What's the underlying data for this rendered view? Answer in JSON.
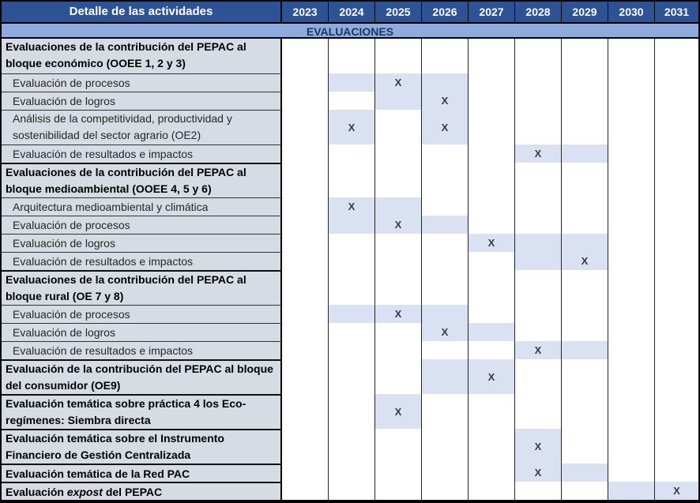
{
  "header": {
    "title": "Detalle de las actividades",
    "years": [
      "2023",
      "2024",
      "2025",
      "2026",
      "2027",
      "2028",
      "2029",
      "2030",
      "2031"
    ]
  },
  "band": {
    "label": "EVALUACIONES"
  },
  "mark_symbol": "X",
  "colors": {
    "header_bg": "#2E5395",
    "header_text": "#FFFFFF",
    "band_bg": "#8FAADC",
    "band_text": "#17375E",
    "label_bg": "#D6DCE4",
    "cell_highlight": "#DAE1F3",
    "mark_color": "#3A3A3A"
  },
  "rows": [
    {
      "kind": "section",
      "label": "Evaluaciones de la contribución del PEPAC al bloque económico (OOEE 1, 2 y 3)",
      "marks": {}
    },
    {
      "kind": "item",
      "label": "Evaluación de procesos",
      "marks": {
        "2024": "s",
        "2025": "x",
        "2026": "s"
      }
    },
    {
      "kind": "item",
      "label": "Evaluación de logros",
      "marks": {
        "2025": "s",
        "2026": "x"
      }
    },
    {
      "kind": "item-tall",
      "label": "Análisis de la competitividad, productividad y sostenibilidad del sector agrario (OE2)",
      "marks": {
        "2024": "x",
        "2026": "x"
      }
    },
    {
      "kind": "item",
      "label": "Evaluación de resultados e impactos",
      "marks": {
        "2028": "x",
        "2029": "s"
      }
    },
    {
      "kind": "section",
      "label": "Evaluaciones de la contribución del PEPAC al bloque medioambiental (OOEE 4, 5 y 6)",
      "marks": {}
    },
    {
      "kind": "item",
      "label": "Arquitectura medioambiental y climática",
      "marks": {
        "2024": "x",
        "2025": "s"
      }
    },
    {
      "kind": "item",
      "label": "Evaluación de procesos",
      "marks": {
        "2024": "s",
        "2025": "x",
        "2026": "s"
      }
    },
    {
      "kind": "item",
      "label": "Evaluación de logros",
      "marks": {
        "2027": "x",
        "2028": "s",
        "2029": "s"
      }
    },
    {
      "kind": "item",
      "label": "Evaluación de resultados e impactos",
      "marks": {
        "2028": "s",
        "2029": "x"
      }
    },
    {
      "kind": "section",
      "label": "Evaluaciones de la contribución del PEPAC al bloque rural (OE 7 y 8)",
      "marks": {}
    },
    {
      "kind": "item",
      "label": "Evaluación de procesos",
      "marks": {
        "2024": "s",
        "2025": "x",
        "2026": "s"
      }
    },
    {
      "kind": "item",
      "label": "Evaluación de logros",
      "marks": {
        "2026": "x",
        "2027": "s"
      }
    },
    {
      "kind": "item",
      "label": "Evaluación de resultados e impactos",
      "marks": {
        "2028": "x",
        "2029": "s"
      }
    },
    {
      "kind": "section",
      "label": "Evaluación de la contribución del PEPAC al bloque del consumidor (OE9)",
      "marks": {
        "2026": "s",
        "2027": "x"
      }
    },
    {
      "kind": "section",
      "label": "Evaluación temática sobre práctica 4 los Eco-regímenes: Siembra directa",
      "marks": {
        "2025": "x"
      }
    },
    {
      "kind": "section",
      "label": "Evaluación temática sobre el Instrumento Financiero de Gestión Centralizada",
      "marks": {
        "2028": "x"
      }
    },
    {
      "kind": "section-single",
      "label": "Evaluación temática de la Red PAC",
      "marks": {
        "2028": "x",
        "2029": "s"
      }
    },
    {
      "kind": "section-single",
      "label_prefix": "Evaluación ",
      "label_italic": "expost",
      "label_suffix": " del PEPAC",
      "marks": {
        "2030": "s",
        "2031": "x"
      }
    }
  ]
}
